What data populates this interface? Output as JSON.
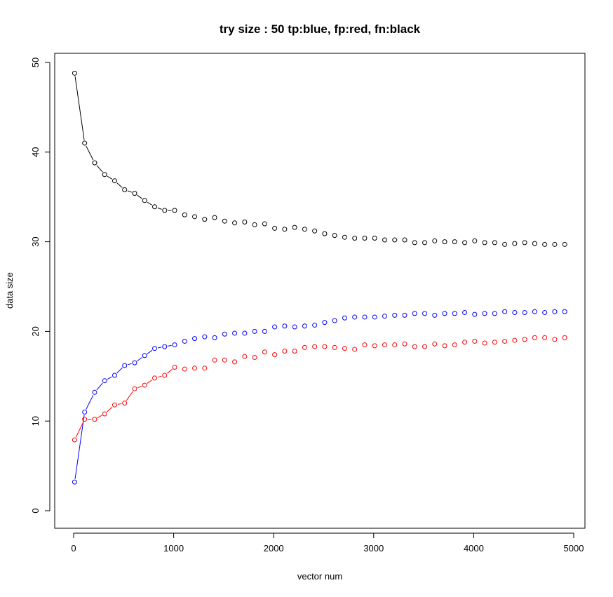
{
  "chart_data": {
    "type": "scatter",
    "title": "try size :  50 tp:blue, fp:red, fn:black",
    "xlabel": "vector num",
    "ylabel": "data size",
    "xlim": [
      0,
      5000
    ],
    "ylim": [
      0,
      50
    ],
    "xticks": [
      "0",
      "1000",
      "2000",
      "3000",
      "4000",
      "5000"
    ],
    "yticks": [
      "0",
      "10",
      "20",
      "30",
      "40",
      "50"
    ],
    "grid": false,
    "x": [
      10,
      110,
      210,
      310,
      410,
      510,
      610,
      710,
      810,
      910,
      1010,
      1110,
      1210,
      1310,
      1410,
      1510,
      1610,
      1710,
      1810,
      1910,
      2010,
      2110,
      2210,
      2310,
      2410,
      2510,
      2610,
      2710,
      2810,
      2910,
      3010,
      3110,
      3210,
      3310,
      3410,
      3510,
      3610,
      3710,
      3810,
      3910,
      4010,
      4110,
      4210,
      4310,
      4410,
      4510,
      4610,
      4710,
      4810,
      4910
    ],
    "series": [
      {
        "name": "fn",
        "color": "#000000",
        "values": [
          48.8,
          41.0,
          38.8,
          37.5,
          36.8,
          35.8,
          35.4,
          34.6,
          33.9,
          33.5,
          33.5,
          33.0,
          32.8,
          32.5,
          32.7,
          32.3,
          32.1,
          32.2,
          31.9,
          32.0,
          31.5,
          31.4,
          31.6,
          31.4,
          31.2,
          30.9,
          30.7,
          30.5,
          30.4,
          30.4,
          30.4,
          30.2,
          30.2,
          30.2,
          29.9,
          29.9,
          30.1,
          30.0,
          30.0,
          29.9,
          30.1,
          29.9,
          29.9,
          29.7,
          29.8,
          29.9,
          29.8,
          29.7,
          29.7,
          29.7
        ],
        "joined_points": 11
      },
      {
        "name": "tp",
        "color": "#0000ff",
        "values": [
          3.2,
          11.0,
          13.2,
          14.5,
          15.1,
          16.2,
          16.5,
          17.3,
          18.1,
          18.3,
          18.5,
          18.9,
          19.2,
          19.4,
          19.3,
          19.7,
          19.8,
          19.8,
          20.0,
          20.0,
          20.5,
          20.6,
          20.5,
          20.6,
          20.7,
          21.0,
          21.2,
          21.5,
          21.6,
          21.6,
          21.6,
          21.7,
          21.8,
          21.8,
          22.0,
          22.0,
          21.8,
          22.0,
          22.0,
          22.1,
          21.9,
          22.0,
          22.0,
          22.2,
          22.1,
          22.1,
          22.2,
          22.1,
          22.2,
          22.2
        ],
        "joined_points": 11
      },
      {
        "name": "fp",
        "color": "#ff0000",
        "values": [
          7.9,
          10.2,
          10.2,
          10.8,
          11.8,
          12.0,
          13.6,
          14.0,
          14.8,
          15.1,
          16.0,
          15.8,
          15.9,
          15.9,
          16.8,
          16.8,
          16.6,
          17.2,
          17.1,
          17.7,
          17.4,
          17.8,
          17.8,
          18.2,
          18.3,
          18.3,
          18.2,
          18.1,
          18.0,
          18.5,
          18.4,
          18.5,
          18.5,
          18.6,
          18.3,
          18.3,
          18.6,
          18.4,
          18.5,
          18.8,
          18.9,
          18.7,
          18.8,
          18.9,
          19.0,
          19.1,
          19.3,
          19.3,
          19.1,
          19.3
        ],
        "joined_points": 11
      }
    ]
  }
}
